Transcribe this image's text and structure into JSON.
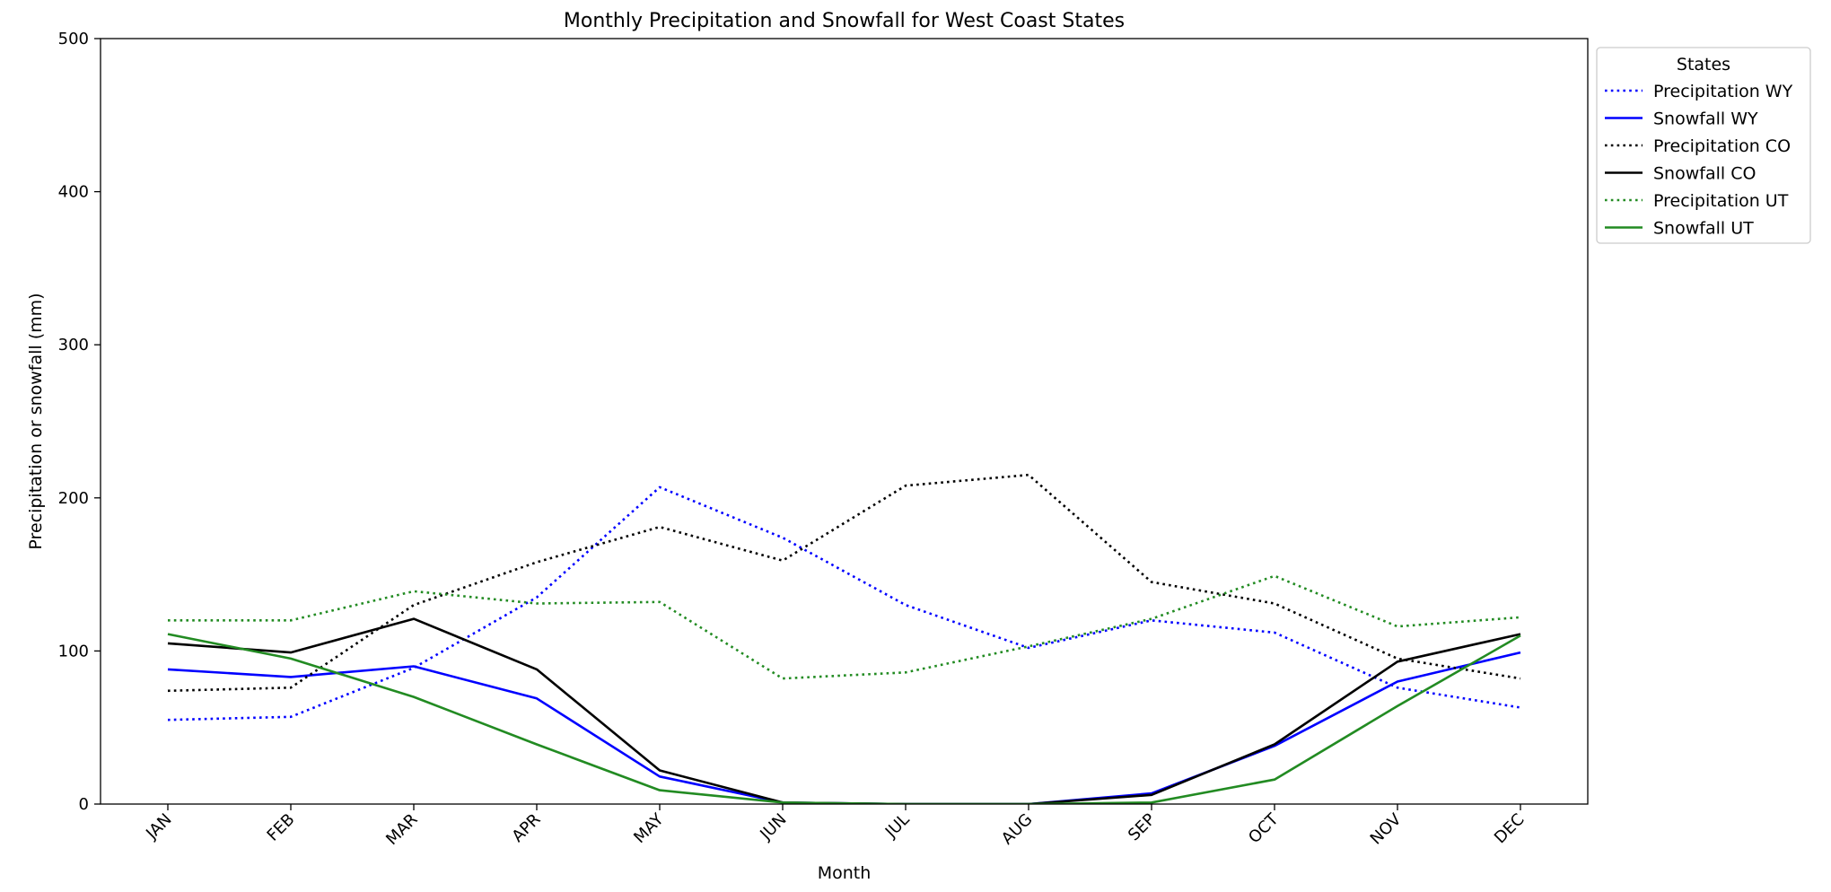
{
  "chart_data": {
    "type": "line",
    "title": "Monthly Precipitation and Snowfall for West Coast States",
    "xlabel": "Month",
    "ylabel": "Precipitation or snowfall (mm)",
    "categories": [
      "JAN",
      "FEB",
      "MAR",
      "APR",
      "MAY",
      "JUN",
      "JUL",
      "AUG",
      "SEP",
      "OCT",
      "NOV",
      "DEC"
    ],
    "ylim": [
      0,
      500
    ],
    "yticks": [
      0,
      100,
      200,
      300,
      400,
      500
    ],
    "grid": false,
    "legend": {
      "title": "States",
      "placement": "outside-top-right"
    },
    "series": [
      {
        "name": "Precipitation WY",
        "color": "#0000ff",
        "style": "dotted",
        "values": [
          55,
          57,
          89,
          135,
          207,
          174,
          130,
          102,
          120,
          112,
          76,
          63
        ]
      },
      {
        "name": "Snowfall WY",
        "color": "#0000ff",
        "style": "solid",
        "values": [
          88,
          83,
          90,
          69,
          18,
          1,
          0,
          0,
          7,
          38,
          80,
          99
        ]
      },
      {
        "name": "Precipitation CO",
        "color": "#000000",
        "style": "dotted",
        "values": [
          74,
          76,
          130,
          158,
          181,
          159,
          208,
          215,
          145,
          131,
          95,
          82
        ]
      },
      {
        "name": "Snowfall CO",
        "color": "#000000",
        "style": "solid",
        "values": [
          105,
          99,
          121,
          88,
          22,
          1,
          0,
          0,
          6,
          39,
          93,
          111
        ]
      },
      {
        "name": "Precipitation UT",
        "color": "#228b22",
        "style": "dotted",
        "values": [
          120,
          120,
          139,
          131,
          132,
          82,
          86,
          103,
          121,
          149,
          116,
          122
        ]
      },
      {
        "name": "Snowfall UT",
        "color": "#228b22",
        "style": "solid",
        "values": [
          111,
          95,
          70,
          39,
          9,
          1,
          0,
          0,
          1,
          16,
          64,
          110
        ]
      }
    ]
  }
}
